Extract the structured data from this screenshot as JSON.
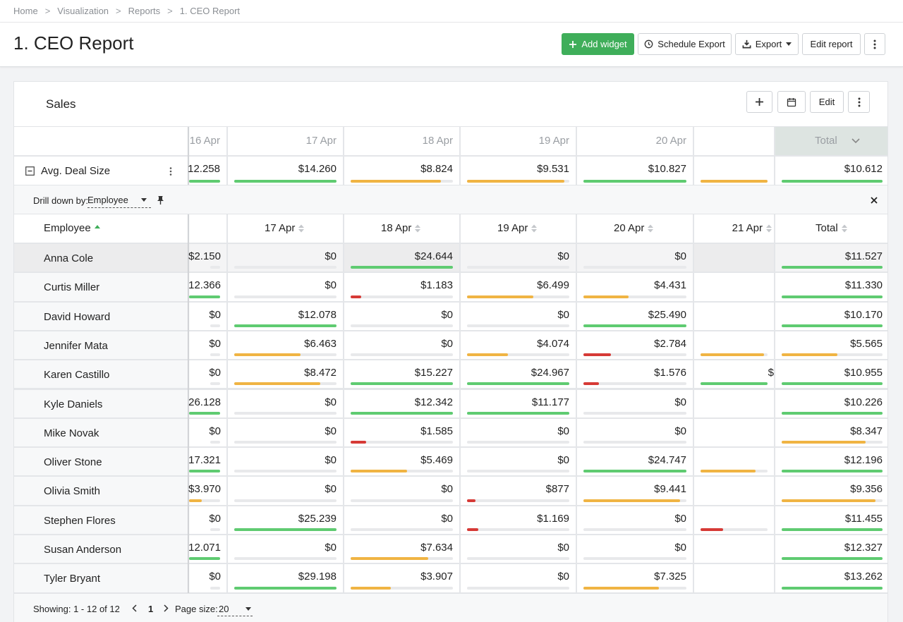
{
  "breadcrumb": [
    "Home",
    "Visualization",
    "Reports",
    "1. CEO Report"
  ],
  "page_title": "1. CEO Report",
  "toolbar": {
    "add_widget": "Add widget",
    "schedule_export": "Schedule Export",
    "export": "Export",
    "edit_report": "Edit report"
  },
  "widget": {
    "title": "Sales",
    "edit_label": "Edit"
  },
  "colors": {
    "green": "#5fcb71",
    "orange": "#f0b443",
    "red": "#d63a36",
    "accent": "#3fae5a"
  },
  "summary": {
    "dates": [
      "16 Apr",
      "17 Apr",
      "18 Apr",
      "19 Apr",
      "20 Apr",
      ""
    ],
    "total_label": "Total",
    "measure_label": "Avg. Deal Size",
    "values": [
      "12.258",
      "$14.260",
      "$8.824",
      "$9.531",
      "$10.827",
      ""
    ],
    "total_value": "$10.612",
    "bars": [
      {
        "pct": 1.0,
        "color": "green"
      },
      {
        "pct": 1.0,
        "color": "green"
      },
      {
        "pct": 0.88,
        "color": "orange"
      },
      {
        "pct": 0.95,
        "color": "orange"
      },
      {
        "pct": 1.0,
        "color": "green"
      },
      {
        "pct": 1.0,
        "color": "orange"
      }
    ],
    "total_bar": {
      "pct": 1.0,
      "color": "green"
    }
  },
  "drill": {
    "label": "Drill down by:",
    "value": "Employee"
  },
  "detail": {
    "employee_header": "Employee",
    "dates": [
      "",
      "17 Apr",
      "18 Apr",
      "19 Apr",
      "20 Apr",
      "21 Apr"
    ],
    "total_header": "Total",
    "rows": [
      {
        "name": "Anna Cole",
        "values": [
          "$2.150",
          "$0",
          "$24.644",
          "$0",
          "$0",
          ""
        ],
        "bars": [
          [
            0,
            "green"
          ],
          [
            0,
            "green"
          ],
          [
            1.0,
            "green"
          ],
          [
            0,
            "green"
          ],
          [
            0,
            "green"
          ],
          [
            0,
            "green"
          ]
        ],
        "total": "$11.527",
        "total_bar": [
          1.0,
          "green"
        ]
      },
      {
        "name": "Curtis Miller",
        "values": [
          "12.366",
          "$0",
          "$1.183",
          "$6.499",
          "$4.431",
          ""
        ],
        "bars": [
          [
            1.0,
            "green"
          ],
          [
            0,
            "green"
          ],
          [
            0.1,
            "red"
          ],
          [
            0.65,
            "orange"
          ],
          [
            0.44,
            "orange"
          ],
          [
            0,
            "green"
          ]
        ],
        "total": "$11.330",
        "total_bar": [
          1.0,
          "green"
        ]
      },
      {
        "name": "David Howard",
        "values": [
          "$0",
          "$12.078",
          "$0",
          "$0",
          "$25.490",
          ""
        ],
        "bars": [
          [
            0,
            "green"
          ],
          [
            1.0,
            "green"
          ],
          [
            0,
            "green"
          ],
          [
            0,
            "green"
          ],
          [
            1.0,
            "green"
          ],
          [
            0,
            "green"
          ]
        ],
        "total": "$10.170",
        "total_bar": [
          1.0,
          "green"
        ]
      },
      {
        "name": "Jennifer Mata",
        "values": [
          "$0",
          "$6.463",
          "$0",
          "$4.074",
          "$2.784",
          ""
        ],
        "bars": [
          [
            0,
            "green"
          ],
          [
            0.65,
            "orange"
          ],
          [
            0,
            "green"
          ],
          [
            0.4,
            "orange"
          ],
          [
            0.27,
            "red"
          ],
          [
            0.95,
            "orange"
          ]
        ],
        "total": "$5.565",
        "total_bar": [
          0.55,
          "orange"
        ]
      },
      {
        "name": "Karen Castillo",
        "values": [
          "$0",
          "$8.472",
          "$15.227",
          "$24.967",
          "$1.576",
          "$"
        ],
        "bars": [
          [
            0,
            "green"
          ],
          [
            0.84,
            "orange"
          ],
          [
            1.0,
            "green"
          ],
          [
            1.0,
            "green"
          ],
          [
            0.15,
            "red"
          ],
          [
            1.0,
            "green"
          ]
        ],
        "total": "$10.955",
        "total_bar": [
          1.0,
          "green"
        ]
      },
      {
        "name": "Kyle Daniels",
        "values": [
          "26.128",
          "$0",
          "$12.342",
          "$11.177",
          "$0",
          ""
        ],
        "bars": [
          [
            1.0,
            "green"
          ],
          [
            0,
            "green"
          ],
          [
            1.0,
            "green"
          ],
          [
            1.0,
            "green"
          ],
          [
            0,
            "green"
          ],
          [
            0,
            "green"
          ]
        ],
        "total": "$10.226",
        "total_bar": [
          1.0,
          "green"
        ]
      },
      {
        "name": "Mike Novak",
        "values": [
          "$0",
          "$0",
          "$1.585",
          "$0",
          "$0",
          ""
        ],
        "bars": [
          [
            0,
            "green"
          ],
          [
            0,
            "green"
          ],
          [
            0.15,
            "red"
          ],
          [
            0,
            "green"
          ],
          [
            0,
            "green"
          ],
          [
            0,
            "green"
          ]
        ],
        "total": "$8.347",
        "total_bar": [
          0.83,
          "orange"
        ]
      },
      {
        "name": "Oliver Stone",
        "values": [
          "17.321",
          "$0",
          "$5.469",
          "$0",
          "$24.747",
          ""
        ],
        "bars": [
          [
            1.0,
            "green"
          ],
          [
            0,
            "green"
          ],
          [
            0.55,
            "orange"
          ],
          [
            0,
            "green"
          ],
          [
            1.0,
            "green"
          ],
          [
            0.82,
            "orange"
          ]
        ],
        "total": "$12.196",
        "total_bar": [
          1.0,
          "green"
        ]
      },
      {
        "name": "Olivia Smith",
        "values": [
          "$3.970",
          "$0",
          "$0",
          "$877",
          "$9.441",
          ""
        ],
        "bars": [
          [
            0.4,
            "orange"
          ],
          [
            0,
            "green"
          ],
          [
            0,
            "green"
          ],
          [
            0.08,
            "red"
          ],
          [
            0.94,
            "orange"
          ],
          [
            0,
            "green"
          ]
        ],
        "total": "$9.356",
        "total_bar": [
          0.93,
          "orange"
        ]
      },
      {
        "name": "Stephen Flores",
        "values": [
          "$0",
          "$25.239",
          "$0",
          "$1.169",
          "$0",
          ""
        ],
        "bars": [
          [
            0,
            "green"
          ],
          [
            1.0,
            "green"
          ],
          [
            0,
            "green"
          ],
          [
            0.11,
            "red"
          ],
          [
            0,
            "green"
          ],
          [
            0.34,
            "red"
          ]
        ],
        "total": "$11.455",
        "total_bar": [
          1.0,
          "green"
        ]
      },
      {
        "name": "Susan Anderson",
        "values": [
          "12.071",
          "$0",
          "$7.634",
          "$0",
          "$0",
          ""
        ],
        "bars": [
          [
            1.0,
            "green"
          ],
          [
            0,
            "green"
          ],
          [
            0.76,
            "orange"
          ],
          [
            0,
            "green"
          ],
          [
            0,
            "green"
          ],
          [
            0,
            "green"
          ]
        ],
        "total": "$12.327",
        "total_bar": [
          1.0,
          "green"
        ]
      },
      {
        "name": "Tyler Bryant",
        "values": [
          "$0",
          "$29.198",
          "$3.907",
          "$0",
          "$7.325",
          ""
        ],
        "bars": [
          [
            0,
            "green"
          ],
          [
            1.0,
            "green"
          ],
          [
            0.39,
            "orange"
          ],
          [
            0,
            "green"
          ],
          [
            0.73,
            "orange"
          ],
          [
            0,
            "green"
          ]
        ],
        "total": "$13.262",
        "total_bar": [
          1.0,
          "green"
        ]
      }
    ]
  },
  "footer": {
    "showing": "Showing: 1 - 12 of 12",
    "page": "1",
    "page_size_label": "Page size:",
    "page_size": "20"
  }
}
